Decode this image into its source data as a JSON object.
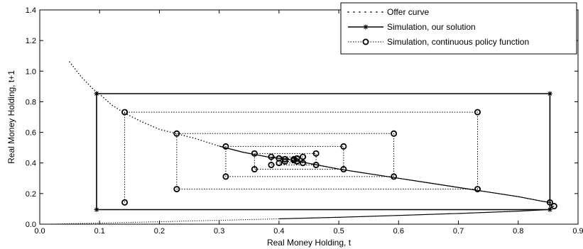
{
  "chart_data": {
    "type": "line",
    "title": "",
    "xlabel": "Real Money Holding, t",
    "ylabel": "Real Money Holding, t+1",
    "xlim": [
      0,
      0.9
    ],
    "ylim": [
      0,
      1.4
    ],
    "xticks": [
      0,
      0.1,
      0.2,
      0.3,
      0.4,
      0.5,
      0.6,
      0.7,
      0.8,
      0.9
    ],
    "xtick_labels": [
      "0.0",
      "0.1",
      "0.2",
      "0.3",
      "0.4",
      "0.5",
      "0.6",
      "0.7",
      "0.8",
      "0.9"
    ],
    "yticks": [
      0,
      0.2,
      0.4,
      0.6,
      0.8,
      1.0,
      1.2,
      1.4
    ],
    "ytick_labels": [
      "0.0",
      "0.2",
      "0.4",
      "0.6",
      "0.8",
      "1.0",
      "1.2",
      "1.4"
    ],
    "grid": false,
    "legend_position": "top-right",
    "series": [
      {
        "name": "Offer curve",
        "style": "dotted",
        "upper_branch": {
          "x": [
            0.05,
            0.07,
            0.09,
            0.1,
            0.12,
            0.14,
            0.17,
            0.2,
            0.23,
            0.26,
            0.3,
            0.34,
            0.38,
            0.42,
            0.46,
            0.5,
            0.55,
            0.6,
            0.65,
            0.7,
            0.75,
            0.8,
            0.84,
            0.855
          ],
          "y": [
            1.06,
            0.96,
            0.88,
            0.85,
            0.78,
            0.73,
            0.67,
            0.62,
            0.59,
            0.56,
            0.51,
            0.47,
            0.44,
            0.42,
            0.39,
            0.36,
            0.33,
            0.3,
            0.27,
            0.24,
            0.21,
            0.18,
            0.15,
            0.14
          ]
        },
        "lower_branch": {
          "x": [
            0.02,
            0.05,
            0.1,
            0.2,
            0.3,
            0.4,
            0.5,
            0.6,
            0.7,
            0.8,
            0.85,
            0.86
          ],
          "y": [
            0.0,
            0.003,
            0.007,
            0.016,
            0.025,
            0.035,
            0.045,
            0.057,
            0.07,
            0.085,
            0.095,
            0.12
          ]
        }
      },
      {
        "name": "Simulation, our solution",
        "style": "solid",
        "marker": "star",
        "x": [
          0.095,
          0.095,
          0.853,
          0.853,
          0.095
        ],
        "y": [
          0.095,
          0.853,
          0.853,
          0.095,
          0.095
        ]
      },
      {
        "name": "Simulation, continuous policy function",
        "style": "dotted",
        "marker": "circle",
        "x": [
          0.142,
          0.142,
          0.732,
          0.732,
          0.229,
          0.229,
          0.592,
          0.592,
          0.311,
          0.311,
          0.508,
          0.508,
          0.359,
          0.359,
          0.462,
          0.462,
          0.387,
          0.387,
          0.44,
          0.44,
          0.4,
          0.4,
          0.43,
          0.43,
          0.41,
          0.41,
          0.425,
          0.425
        ],
        "y": [
          0.142,
          0.732,
          0.732,
          0.229,
          0.229,
          0.592,
          0.592,
          0.311,
          0.311,
          0.508,
          0.508,
          0.359,
          0.359,
          0.462,
          0.462,
          0.387,
          0.387,
          0.44,
          0.44,
          0.4,
          0.4,
          0.43,
          0.43,
          0.41,
          0.41,
          0.425,
          0.425,
          0.418
        ]
      }
    ],
    "extra_points": [
      {
        "x": 0.853,
        "y": 0.142
      },
      {
        "x": 0.86,
        "y": 0.118
      }
    ]
  }
}
